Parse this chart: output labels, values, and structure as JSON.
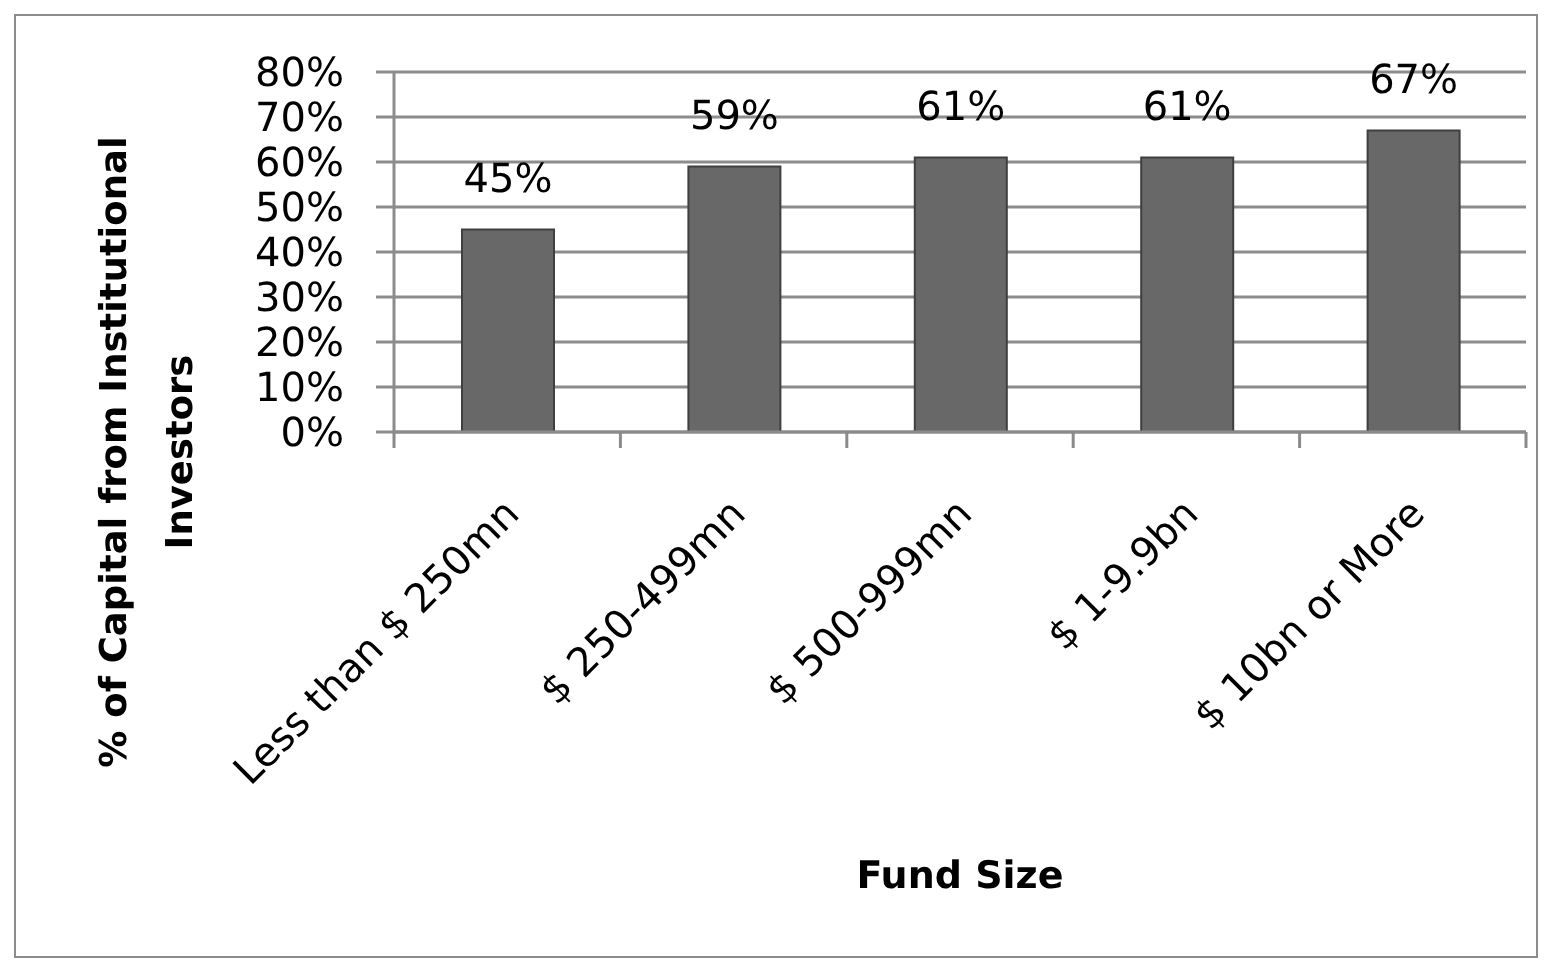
{
  "chart_data": {
    "type": "bar",
    "xlabel": "Fund Size",
    "ylabel": "% of Capital from Institutional Investors",
    "categories": [
      "Less than $ 250mn",
      "$ 250-499mn",
      "$ 500-999mn",
      "$ 1-9.9bn",
      "$ 10bn or More"
    ],
    "values": [
      45,
      59,
      61,
      61,
      67
    ],
    "value_labels": [
      "45%",
      "59%",
      "61%",
      "61%",
      "67%"
    ],
    "color": "#686868",
    "ylim": [
      0,
      80
    ],
    "yticks": [
      {
        "value": 0,
        "label": "0%"
      },
      {
        "value": 10,
        "label": "10%"
      },
      {
        "value": 20,
        "label": "20%"
      },
      {
        "value": 30,
        "label": "30%"
      },
      {
        "value": 40,
        "label": "40%"
      },
      {
        "value": 50,
        "label": "50%"
      },
      {
        "value": 60,
        "label": "60%"
      },
      {
        "value": 70,
        "label": "70%"
      },
      {
        "value": 80,
        "label": "80%"
      }
    ],
    "grid": "y"
  }
}
